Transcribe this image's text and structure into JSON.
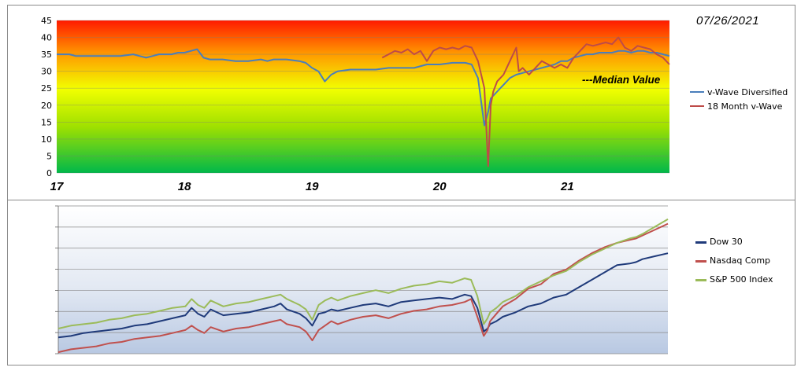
{
  "date_label": "07/26/2021",
  "median_label": "---Median Value",
  "colors": {
    "v_wave": "#4a7ebb",
    "eighteen_month": "#be4b48",
    "dow": "#1f3a7a",
    "nasdaq": "#c0504d",
    "sp500": "#9bbb59"
  },
  "chart_data": [
    {
      "type": "line",
      "x_ticks": [
        "17",
        "18",
        "19",
        "20",
        "21"
      ],
      "y_ticks": [
        "0",
        "5",
        "10",
        "15",
        "20",
        "25",
        "30",
        "35",
        "40",
        "45"
      ],
      "ylim": [
        0,
        45
      ],
      "xlim": [
        2017.0,
        2021.8
      ],
      "background": "red-to-green vertical gradient",
      "grid": true,
      "legend_position": "right",
      "annotation": "---Median Value",
      "series": [
        {
          "name": "v-Wave Diversified",
          "x": [
            2017.0,
            2017.1,
            2017.15,
            2017.2,
            2017.3,
            2017.4,
            2017.5,
            2017.6,
            2017.65,
            2017.7,
            2017.75,
            2017.8,
            2017.9,
            2017.95,
            2018.0,
            2018.05,
            2018.1,
            2018.15,
            2018.2,
            2018.25,
            2018.3,
            2018.4,
            2018.5,
            2018.6,
            2018.65,
            2018.7,
            2018.8,
            2018.9,
            2018.95,
            2019.0,
            2019.05,
            2019.1,
            2019.15,
            2019.2,
            2019.3,
            2019.4,
            2019.5,
            2019.6,
            2019.7,
            2019.8,
            2019.9,
            2020.0,
            2020.1,
            2020.2,
            2020.25,
            2020.3,
            2020.35,
            2020.38,
            2020.4,
            2020.45,
            2020.5,
            2020.55,
            2020.6,
            2020.65,
            2020.7,
            2020.75,
            2020.8,
            2020.85,
            2020.9,
            2020.95,
            2021.0,
            2021.05,
            2021.1,
            2021.15,
            2021.2,
            2021.25,
            2021.3,
            2021.35,
            2021.4,
            2021.45,
            2021.5,
            2021.55,
            2021.6,
            2021.65,
            2021.7,
            2021.75,
            2021.8
          ],
          "values": [
            35,
            35,
            34.5,
            34.5,
            34.5,
            34.5,
            34.5,
            35,
            34.5,
            34,
            34.5,
            35,
            35,
            35.5,
            35.5,
            36,
            36.5,
            34,
            33.5,
            33.5,
            33.5,
            33,
            33,
            33.5,
            33,
            33.5,
            33.5,
            33,
            32.5,
            31,
            30,
            27,
            29,
            30,
            30.5,
            30.5,
            30.5,
            31,
            31,
            31,
            32,
            32,
            32.5,
            32.5,
            32,
            28,
            14,
            18,
            22,
            24,
            26,
            28,
            29,
            29.5,
            30,
            30.5,
            31,
            31.5,
            32,
            33,
            33,
            34,
            34.5,
            35,
            35,
            35.5,
            35.5,
            35.5,
            36,
            36,
            35.5,
            36,
            36,
            35.5,
            35.5,
            35,
            34.5
          ]
        },
        {
          "name": "18 Month v-Wave",
          "x": [
            2019.55,
            2019.6,
            2019.65,
            2019.7,
            2019.75,
            2019.8,
            2019.85,
            2019.9,
            2019.95,
            2020.0,
            2020.05,
            2020.1,
            2020.15,
            2020.2,
            2020.25,
            2020.3,
            2020.35,
            2020.38,
            2020.4,
            2020.42,
            2020.45,
            2020.5,
            2020.55,
            2020.6,
            2020.62,
            2020.65,
            2020.7,
            2020.75,
            2020.8,
            2020.85,
            2020.9,
            2020.95,
            2021.0,
            2021.05,
            2021.1,
            2021.15,
            2021.2,
            2021.25,
            2021.3,
            2021.35,
            2021.4,
            2021.45,
            2021.5,
            2021.55,
            2021.6,
            2021.65,
            2021.7,
            2021.75,
            2021.8
          ],
          "values": [
            34,
            35,
            36,
            35.5,
            36.5,
            35,
            36,
            33,
            36,
            37,
            36.5,
            37,
            36.5,
            37.5,
            37,
            33,
            25,
            2,
            20,
            24,
            27,
            29,
            33,
            37,
            30,
            31,
            29,
            31,
            33,
            32,
            31,
            32,
            31,
            34,
            36,
            38,
            37.5,
            38,
            38.5,
            38,
            40,
            37,
            36,
            37.5,
            37,
            36.5,
            35,
            34,
            32
          ]
        }
      ]
    },
    {
      "type": "line",
      "xlim": [
        2017.0,
        2021.8
      ],
      "ylim": [
        0,
        100
      ],
      "background": "blue-to-white vertical gradient",
      "grid": true,
      "legend_position": "right",
      "series": [
        {
          "name": "Dow 30",
          "x": [
            2017.0,
            2017.1,
            2017.2,
            2017.3,
            2017.4,
            2017.5,
            2017.6,
            2017.7,
            2017.8,
            2017.9,
            2018.0,
            2018.05,
            2018.1,
            2018.15,
            2018.2,
            2018.3,
            2018.4,
            2018.5,
            2018.6,
            2018.7,
            2018.75,
            2018.8,
            2018.9,
            2018.95,
            2019.0,
            2019.05,
            2019.1,
            2019.15,
            2019.2,
            2019.3,
            2019.4,
            2019.5,
            2019.6,
            2019.7,
            2019.8,
            2019.9,
            2020.0,
            2020.1,
            2020.2,
            2020.25,
            2020.3,
            2020.35,
            2020.38,
            2020.4,
            2020.45,
            2020.5,
            2020.6,
            2020.7,
            2020.8,
            2020.9,
            2021.0,
            2021.1,
            2021.2,
            2021.3,
            2021.4,
            2021.5,
            2021.55,
            2021.6,
            2021.7,
            2021.8
          ],
          "values": [
            11,
            12,
            14,
            15,
            16,
            17,
            19,
            20,
            22,
            24,
            26,
            31,
            27,
            25,
            30,
            26,
            27,
            28,
            30,
            32,
            34,
            30,
            27,
            24,
            19,
            27,
            28,
            30,
            29,
            31,
            33,
            34,
            32,
            35,
            36,
            37,
            38,
            37,
            40,
            39,
            31,
            15,
            17,
            20,
            22,
            25,
            28,
            32,
            34,
            38,
            40,
            45,
            50,
            55,
            60,
            61,
            62,
            64,
            66,
            68
          ]
        },
        {
          "name": "Nasdaq Comp",
          "x": [
            2017.0,
            2017.1,
            2017.2,
            2017.3,
            2017.4,
            2017.5,
            2017.6,
            2017.7,
            2017.8,
            2017.9,
            2018.0,
            2018.05,
            2018.1,
            2018.15,
            2018.2,
            2018.3,
            2018.4,
            2018.5,
            2018.6,
            2018.7,
            2018.75,
            2018.8,
            2018.9,
            2018.95,
            2019.0,
            2019.05,
            2019.1,
            2019.15,
            2019.2,
            2019.3,
            2019.4,
            2019.5,
            2019.6,
            2019.7,
            2019.8,
            2019.9,
            2020.0,
            2020.1,
            2020.2,
            2020.25,
            2020.3,
            2020.35,
            2020.38,
            2020.4,
            2020.45,
            2020.5,
            2020.6,
            2020.7,
            2020.8,
            2020.9,
            2021.0,
            2021.1,
            2021.2,
            2021.3,
            2021.4,
            2021.5,
            2021.55,
            2021.6,
            2021.7,
            2021.8
          ],
          "values": [
            1,
            3,
            4,
            5,
            7,
            8,
            10,
            11,
            12,
            14,
            16,
            19,
            16,
            14,
            18,
            15,
            17,
            18,
            20,
            22,
            23,
            20,
            18,
            15,
            9,
            16,
            19,
            22,
            20,
            23,
            25,
            26,
            24,
            27,
            29,
            30,
            32,
            33,
            35,
            37,
            25,
            12,
            16,
            22,
            27,
            32,
            37,
            44,
            47,
            54,
            57,
            63,
            68,
            72,
            75,
            77,
            78,
            80,
            84,
            88
          ]
        },
        {
          "name": "S&P 500 Index",
          "x": [
            2017.0,
            2017.1,
            2017.2,
            2017.3,
            2017.4,
            2017.5,
            2017.6,
            2017.7,
            2017.8,
            2017.9,
            2018.0,
            2018.05,
            2018.1,
            2018.15,
            2018.2,
            2018.3,
            2018.4,
            2018.5,
            2018.6,
            2018.7,
            2018.75,
            2018.8,
            2018.9,
            2018.95,
            2019.0,
            2019.05,
            2019.1,
            2019.15,
            2019.2,
            2019.3,
            2019.4,
            2019.5,
            2019.6,
            2019.7,
            2019.8,
            2019.9,
            2020.0,
            2020.1,
            2020.2,
            2020.25,
            2020.3,
            2020.35,
            2020.38,
            2020.4,
            2020.45,
            2020.5,
            2020.6,
            2020.7,
            2020.8,
            2020.9,
            2021.0,
            2021.1,
            2021.2,
            2021.3,
            2021.4,
            2021.5,
            2021.55,
            2021.6,
            2021.7,
            2021.8
          ],
          "values": [
            17,
            19,
            20,
            21,
            23,
            24,
            26,
            27,
            29,
            31,
            32,
            37,
            33,
            31,
            36,
            32,
            34,
            35,
            37,
            39,
            40,
            37,
            33,
            30,
            23,
            33,
            36,
            38,
            36,
            39,
            41,
            43,
            41,
            44,
            46,
            47,
            49,
            48,
            51,
            50,
            39,
            20,
            24,
            28,
            31,
            35,
            39,
            45,
            49,
            53,
            56,
            62,
            67,
            71,
            75,
            78,
            79,
            81,
            86,
            91
          ]
        }
      ]
    }
  ]
}
